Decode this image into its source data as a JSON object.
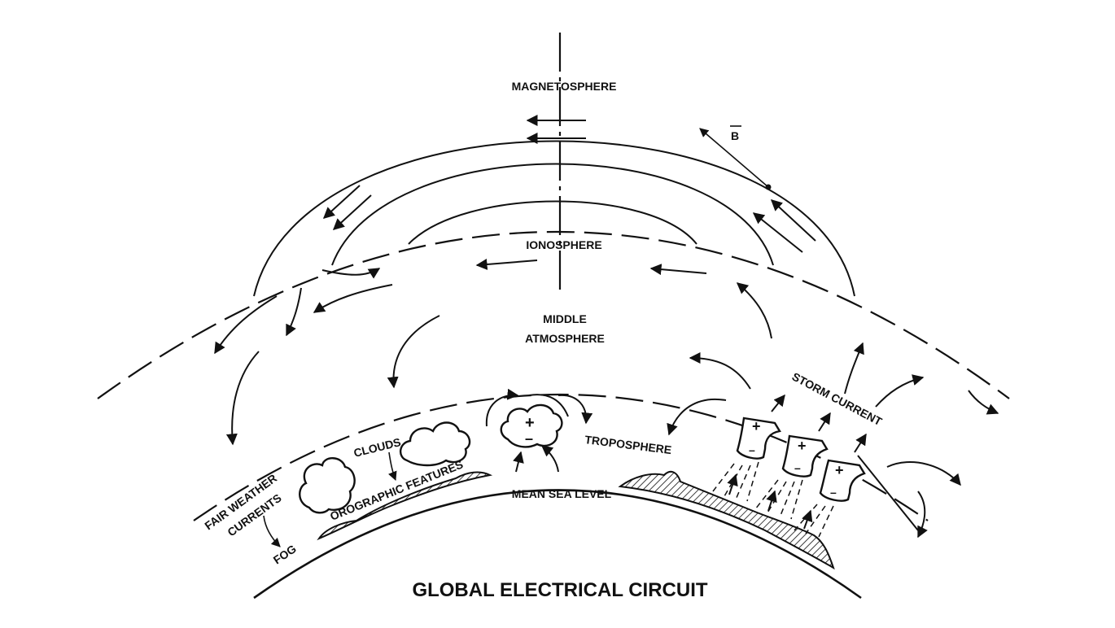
{
  "title": "GLOBAL ELECTRICAL CIRCUIT",
  "labels": {
    "magnetosphere": "MAGNETOSPHERE",
    "b_field": "B",
    "ionosphere": "IONOSPHERE",
    "middle_atmosphere_line1": "MIDDLE",
    "middle_atmosphere_line2": "ATMOSPHERE",
    "storm_current": "STORM CURRENT",
    "troposphere": "TROPOSPHERE",
    "clouds": "CLOUDS",
    "orographic_features": "OROGRAPHIC FEATURES",
    "fair_weather_line1": "FAIR WEATHER",
    "fair_weather_line2": "CURRENTS",
    "fog": "FOG",
    "mean_sea_level": "MEAN SEA LEVEL"
  },
  "charge_symbols": {
    "plus": "+",
    "minus": "–"
  }
}
